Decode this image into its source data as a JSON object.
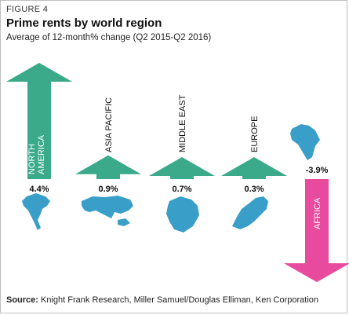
{
  "figure_label": "FIGURE 4",
  "title": "Prime rents by world region",
  "subtitle": "Average of 12-month% change (Q2 2015-Q2 2016)",
  "source": {
    "label": "Source:",
    "text": " Knight Frank Research, Miller Samuel/Douglas Elliman, Ken Corporation"
  },
  "colors": {
    "positive": "#3aaa8a",
    "negative": "#e84a9d",
    "map": "#3a9fc8"
  },
  "chart_data": {
    "type": "bar",
    "title": "Prime rents by world region",
    "subtitle": "Average of 12-month% change (Q2 2015-Q2 2016)",
    "categories": [
      "NORTH AMERICA",
      "ASIA PACIFIC",
      "MIDDLE EAST",
      "EUROPE",
      "AFRICA"
    ],
    "values": [
      4.4,
      0.9,
      0.7,
      0.3,
      -3.9
    ],
    "value_labels": [
      "4.4%",
      "0.9%",
      "0.7%",
      "0.3%",
      "-3.9%"
    ],
    "label_lines": [
      [
        "NORTH",
        "AMERICA"
      ],
      [
        "ASIA PACIFIC"
      ],
      [
        "MIDDLE EAST"
      ],
      [
        "EUROPE"
      ],
      [
        "AFRICA"
      ]
    ],
    "map_icons": [
      "north-america-map-icon",
      "asia-pacific-map-icon",
      "middle-east-map-icon",
      "europe-map-icon",
      "africa-map-icon"
    ],
    "unit": "%"
  }
}
